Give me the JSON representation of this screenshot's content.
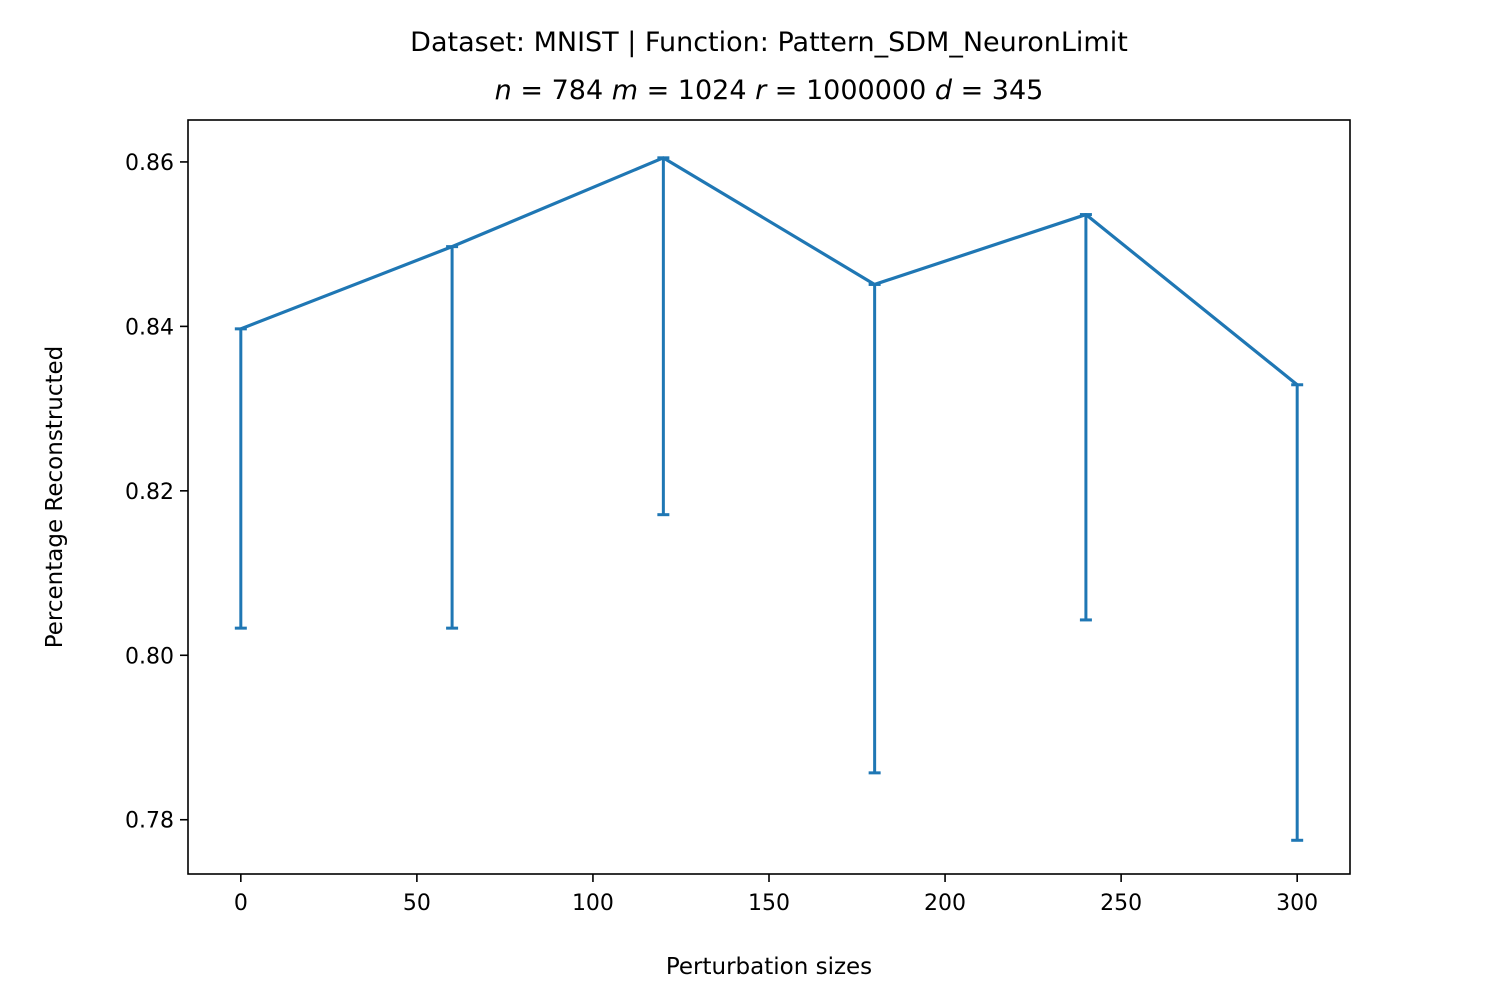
{
  "chart_data": {
    "type": "line",
    "title": "Dataset: MNIST | Function: Pattern_SDM_NeuronLimit",
    "subtitle": "n = 784 m = 1024 r = 1000000 d = 345",
    "subtitle_parts": [
      {
        "var": "n",
        "value": "784"
      },
      {
        "var": "m",
        "value": "1024"
      },
      {
        "var": "r",
        "value": "1000000"
      },
      {
        "var": "d",
        "value": "345"
      }
    ],
    "xlabel": "Perturbation sizes",
    "ylabel": "Percentage Reconstructed",
    "xlim": [
      -15,
      315
    ],
    "ylim": [
      0.7734,
      0.8651
    ],
    "xticks": [
      0,
      50,
      100,
      150,
      200,
      250,
      300
    ],
    "xtick_labels": [
      "0",
      "50",
      "100",
      "150",
      "200",
      "250",
      "300"
    ],
    "yticks": [
      0.78,
      0.8,
      0.82,
      0.84,
      0.86
    ],
    "ytick_labels": [
      "0.78",
      "0.80",
      "0.82",
      "0.84",
      "0.86"
    ],
    "grid": false,
    "series": [
      {
        "color": "#1f77b4",
        "x": [
          0,
          60,
          120,
          180,
          240,
          300
        ],
        "y": [
          0.8397,
          0.8497,
          0.8605,
          0.8451,
          0.8536,
          0.8329
        ],
        "error_lower": [
          0.8033,
          0.8033,
          0.8171,
          0.7857,
          0.8043,
          0.7775
        ],
        "error_upper": [
          0.8397,
          0.8497,
          0.8605,
          0.8451,
          0.8536,
          0.8329
        ]
      }
    ]
  }
}
